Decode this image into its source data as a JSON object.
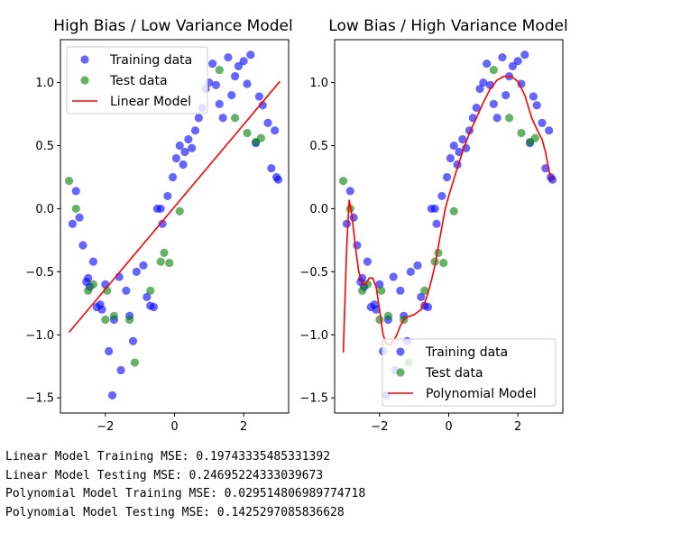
{
  "chart_data": [
    {
      "type": "scatter",
      "title": "High Bias / Low Variance Model",
      "xlim": [
        -3.3,
        3.3
      ],
      "ylim": [
        -1.62,
        1.34
      ],
      "xticks": [
        -2,
        0,
        2
      ],
      "yticks": [
        -1.5,
        -1.0,
        -0.5,
        0.0,
        0.5,
        1.0
      ],
      "legend_position": "top-left",
      "colors": {
        "train": "#0000ff",
        "test": "#008000",
        "model": "#ff0000"
      },
      "series": [
        {
          "name": "Training data",
          "kind": "scatter",
          "color": "#0000ff",
          "x": [
            -2.95,
            -2.85,
            -2.75,
            -2.65,
            -2.55,
            -2.5,
            -2.45,
            -2.35,
            -2.25,
            -2.15,
            -2.1,
            -2.0,
            -1.9,
            -1.8,
            -1.75,
            -1.6,
            -1.55,
            -1.4,
            -1.3,
            -1.2,
            -1.1,
            -0.9,
            -0.8,
            -0.7,
            -0.6,
            -0.5,
            -0.4,
            -0.35,
            -0.2,
            -0.05,
            0.05,
            0.15,
            0.25,
            0.3,
            0.4,
            0.5,
            0.6,
            0.7,
            0.8,
            0.9,
            1.0,
            1.1,
            1.2,
            1.3,
            1.4,
            1.55,
            1.65,
            1.75,
            1.85,
            2.0,
            2.1,
            2.2,
            2.35,
            2.45,
            2.55,
            2.7,
            2.8,
            2.9,
            2.95,
            3.0
          ],
          "y": [
            -0.12,
            0.14,
            -0.07,
            -0.29,
            -0.58,
            -0.55,
            -0.62,
            -0.42,
            -0.78,
            -0.76,
            -0.8,
            -0.6,
            -1.13,
            -1.48,
            -0.88,
            -0.54,
            -1.28,
            -0.65,
            -0.85,
            -1.05,
            -0.5,
            -0.45,
            -0.7,
            -0.77,
            -0.78,
            0.0,
            0.0,
            -0.12,
            0.1,
            0.25,
            0.4,
            0.5,
            0.35,
            0.45,
            0.55,
            0.48,
            0.62,
            0.72,
            0.8,
            0.95,
            1.0,
            1.15,
            0.98,
            0.83,
            0.72,
            1.2,
            0.9,
            1.05,
            1.13,
            1.17,
            0.99,
            1.22,
            0.52,
            0.89,
            0.82,
            0.68,
            0.32,
            0.62,
            0.25,
            0.23
          ]
        },
        {
          "name": "Test data",
          "kind": "scatter",
          "color": "#008000",
          "x": [
            -3.05,
            -2.85,
            -2.5,
            -2.35,
            -2.0,
            -1.95,
            -1.75,
            -1.3,
            -1.15,
            -0.7,
            -0.4,
            -0.3,
            -0.15,
            0.15,
            1.3,
            1.75,
            2.1,
            2.35,
            2.5
          ],
          "y": [
            0.22,
            0.0,
            -0.65,
            -0.6,
            -0.88,
            -0.65,
            -0.85,
            -0.88,
            -1.22,
            -0.65,
            -0.42,
            -0.35,
            -0.43,
            -0.02,
            1.1,
            0.72,
            0.6,
            0.53,
            0.56
          ]
        },
        {
          "name": "Linear Model",
          "kind": "line",
          "color": "#ff0000",
          "x": [
            -3.05,
            3.05
          ],
          "y": [
            -0.98,
            1.01
          ]
        }
      ]
    },
    {
      "type": "scatter",
      "title": "Low Bias / High Variance Model",
      "xlim": [
        -3.3,
        3.3
      ],
      "ylim": [
        -1.62,
        1.34
      ],
      "xticks": [
        -2,
        0,
        2
      ],
      "yticks": [
        -1.5,
        -1.0,
        -0.5,
        0.0,
        0.5,
        1.0
      ],
      "legend_position": "bottom-right",
      "colors": {
        "train": "#0000ff",
        "test": "#008000",
        "model": "#ff0000"
      },
      "series": [
        {
          "name": "Training data",
          "kind": "scatter",
          "color": "#0000ff",
          "x": [
            -2.95,
            -2.85,
            -2.75,
            -2.65,
            -2.55,
            -2.5,
            -2.45,
            -2.35,
            -2.25,
            -2.15,
            -2.1,
            -2.0,
            -1.9,
            -1.8,
            -1.75,
            -1.6,
            -1.55,
            -1.4,
            -1.3,
            -1.2,
            -1.1,
            -0.9,
            -0.8,
            -0.7,
            -0.6,
            -0.5,
            -0.4,
            -0.35,
            -0.2,
            -0.05,
            0.05,
            0.15,
            0.25,
            0.3,
            0.4,
            0.5,
            0.6,
            0.7,
            0.8,
            0.9,
            1.0,
            1.1,
            1.2,
            1.3,
            1.4,
            1.55,
            1.65,
            1.75,
            1.85,
            2.0,
            2.1,
            2.2,
            2.35,
            2.45,
            2.55,
            2.7,
            2.8,
            2.9,
            2.95,
            3.0
          ],
          "y": [
            -0.12,
            0.14,
            -0.07,
            -0.29,
            -0.58,
            -0.55,
            -0.62,
            -0.42,
            -0.78,
            -0.76,
            -0.8,
            -0.6,
            -1.13,
            -1.48,
            -0.88,
            -0.54,
            -1.28,
            -0.65,
            -0.85,
            -1.05,
            -0.5,
            -0.45,
            -0.7,
            -0.77,
            -0.78,
            0.0,
            0.0,
            -0.12,
            0.1,
            0.25,
            0.4,
            0.5,
            0.35,
            0.45,
            0.55,
            0.48,
            0.62,
            0.72,
            0.8,
            0.95,
            1.0,
            1.15,
            0.98,
            0.83,
            0.72,
            1.2,
            0.9,
            1.05,
            1.13,
            1.17,
            0.99,
            1.22,
            0.52,
            0.89,
            0.82,
            0.68,
            0.32,
            0.62,
            0.25,
            0.23
          ]
        },
        {
          "name": "Test data",
          "kind": "scatter",
          "color": "#008000",
          "x": [
            -3.05,
            -2.85,
            -2.5,
            -2.35,
            -2.0,
            -1.95,
            -1.75,
            -1.3,
            -1.15,
            -0.7,
            -0.4,
            -0.3,
            -0.15,
            0.15,
            1.3,
            1.75,
            2.1,
            2.35,
            2.5
          ],
          "y": [
            0.22,
            0.0,
            -0.65,
            -0.6,
            -0.88,
            -0.65,
            -0.85,
            -0.88,
            -1.22,
            -0.65,
            -0.42,
            -0.35,
            -0.43,
            -0.02,
            1.1,
            0.72,
            0.6,
            0.53,
            0.56
          ]
        },
        {
          "name": "Polynomial Model",
          "kind": "line",
          "color": "#ff0000",
          "x": [
            -3.05,
            -2.95,
            -2.88,
            -2.8,
            -2.7,
            -2.6,
            -2.5,
            -2.4,
            -2.3,
            -2.2,
            -2.1,
            -2.0,
            -1.9,
            -1.8,
            -1.7,
            -1.6,
            -1.5,
            -1.4,
            -1.3,
            -1.2,
            -1.1,
            -1.0,
            -0.9,
            -0.8,
            -0.7,
            -0.6,
            -0.5,
            -0.4,
            -0.3,
            -0.2,
            -0.1,
            0.0,
            0.2,
            0.4,
            0.6,
            0.8,
            1.0,
            1.2,
            1.4,
            1.6,
            1.8,
            2.0,
            2.2,
            2.4,
            2.6,
            2.7,
            2.8,
            2.9,
            3.0
          ],
          "y": [
            -1.14,
            -0.3,
            0.07,
            -0.05,
            -0.3,
            -0.5,
            -0.6,
            -0.6,
            -0.55,
            -0.55,
            -0.62,
            -0.8,
            -1.0,
            -1.07,
            -1.08,
            -1.05,
            -1.0,
            -0.93,
            -0.88,
            -0.86,
            -0.85,
            -0.84,
            -0.82,
            -0.8,
            -0.75,
            -0.67,
            -0.57,
            -0.45,
            -0.3,
            -0.15,
            0.0,
            0.1,
            0.28,
            0.45,
            0.6,
            0.72,
            0.84,
            0.95,
            1.02,
            1.05,
            1.05,
            1.01,
            0.9,
            0.72,
            0.6,
            0.55,
            0.45,
            0.3,
            0.22
          ]
        }
      ]
    }
  ],
  "output": {
    "lines": [
      "Linear Model Training MSE: 0.19743335485331392",
      "Linear Model Testing MSE: 0.24695224333039673",
      "Polynomial Model Training MSE: 0.029514806989774718",
      "Polynomial Model Testing MSE: 0.1425297085836628"
    ]
  }
}
